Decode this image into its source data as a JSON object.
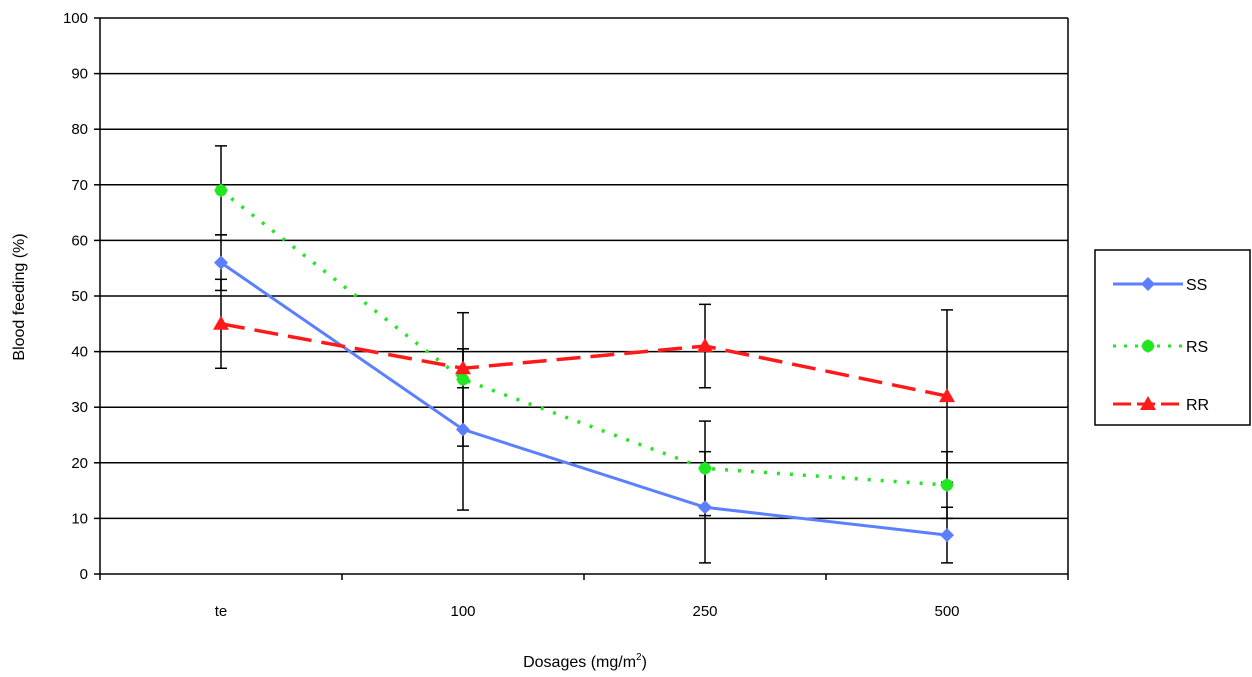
{
  "chart_data": {
    "type": "line",
    "title": "",
    "xlabel": "Dosages (mg/m",
    "xlabel_superscript": "2",
    "xlabel_suffix": ")",
    "ylabel": "Blood feeding (%)",
    "ylim": [
      0,
      100
    ],
    "ytick_step": 10,
    "categories": [
      "te",
      "100",
      "250",
      "500"
    ],
    "grid": true,
    "legend_position": "right",
    "series": [
      {
        "name": "SS",
        "color": "#5b7fff",
        "dash": "solid",
        "marker": "diamond",
        "values": [
          56,
          26,
          12,
          7
        ],
        "errors": [
          5,
          14.5,
          10,
          5
        ]
      },
      {
        "name": "RS",
        "color": "#22e622",
        "dash": "dotted",
        "marker": "circle",
        "values": [
          69,
          35,
          19,
          16
        ],
        "errors": [
          8,
          12,
          8.5,
          6
        ]
      },
      {
        "name": "RR",
        "color": "#ff1a1a",
        "dash": "dashed",
        "marker": "triangle",
        "values": [
          45,
          37,
          41,
          32
        ],
        "errors": [
          8,
          3.5,
          7.5,
          15.5
        ]
      }
    ]
  }
}
